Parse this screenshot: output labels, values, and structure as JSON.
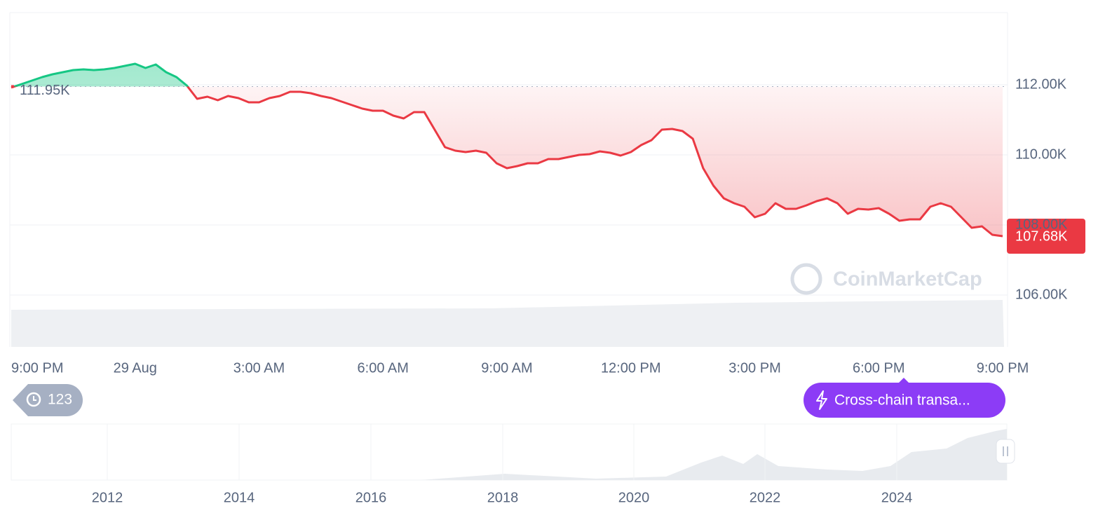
{
  "chart_data": {
    "type": "line",
    "categories": [
      "9:00 PM",
      null,
      null,
      null,
      null,
      null,
      null,
      null,
      null,
      null,
      null,
      null,
      "29 Aug",
      null,
      null,
      null,
      null,
      null,
      null,
      null,
      null,
      null,
      null,
      null,
      "3:00 AM",
      null,
      null,
      null,
      null,
      null,
      null,
      null,
      null,
      null,
      null,
      null,
      "6:00 AM",
      null,
      null,
      null,
      null,
      null,
      null,
      null,
      null,
      null,
      null,
      null,
      "9:00 AM",
      null,
      null,
      null,
      null,
      null,
      null,
      null,
      null,
      null,
      null,
      null,
      "12:00 PM",
      null,
      null,
      null,
      null,
      null,
      null,
      null,
      null,
      null,
      null,
      null,
      "3:00 PM",
      null,
      null,
      null,
      null,
      null,
      null,
      null,
      null,
      null,
      null,
      null,
      "6:00 PM",
      null,
      null,
      null,
      null,
      null,
      null,
      null,
      null,
      null,
      null,
      null,
      "9:00 PM"
    ],
    "series": [
      {
        "values": [
          111920,
          112020,
          112120,
          112220,
          112300,
          112360,
          112420,
          112440,
          112420,
          112440,
          112480,
          112540,
          112600,
          112480,
          112580,
          112360,
          112220,
          111980,
          111600,
          111660,
          111560,
          111680,
          111620,
          111500,
          111500,
          111620,
          111680,
          111800,
          111800,
          111760,
          111680,
          111620,
          111520,
          111420,
          111320,
          111260,
          111260,
          111120,
          111040,
          111220,
          111220,
          110720,
          110220,
          110120,
          110080,
          110120,
          110060,
          109760,
          109620,
          109680,
          109760,
          109760,
          109880,
          109880,
          109940,
          110000,
          110020,
          110100,
          110060,
          109980,
          110080,
          110280,
          110420,
          110720,
          110740,
          110680,
          110460,
          109620,
          109120,
          108760,
          108620,
          108520,
          108220,
          108320,
          108620,
          108460,
          108460,
          108560,
          108680,
          108760,
          108620,
          108320,
          108460,
          108440,
          108480,
          108320,
          108120,
          108160,
          108160,
          108520,
          108620,
          108520,
          108220,
          107920,
          107960,
          107720,
          107680
        ]
      }
    ],
    "up_color": "#16c784",
    "down_color": "#ea3943",
    "reference": {
      "value": 111950,
      "label": "111.95K"
    },
    "last_price": {
      "value": 107680,
      "label": "107.68K"
    },
    "ylim": [
      106000,
      114000
    ],
    "yticks": [
      {
        "value": 106000,
        "label": "106.00K"
      },
      {
        "value": 108000,
        "label": "108.00K"
      },
      {
        "value": 110000,
        "label": "110.00K"
      },
      {
        "value": 112000,
        "label": "112.00K"
      }
    ],
    "grid": true
  },
  "ui": {
    "badge": "123",
    "event_button": "Cross-chain transa...",
    "watermark": "CoinMarketCap",
    "navigator_years": [
      "2012",
      "2014",
      "2016",
      "2018",
      "2020",
      "2022",
      "2024"
    ]
  }
}
